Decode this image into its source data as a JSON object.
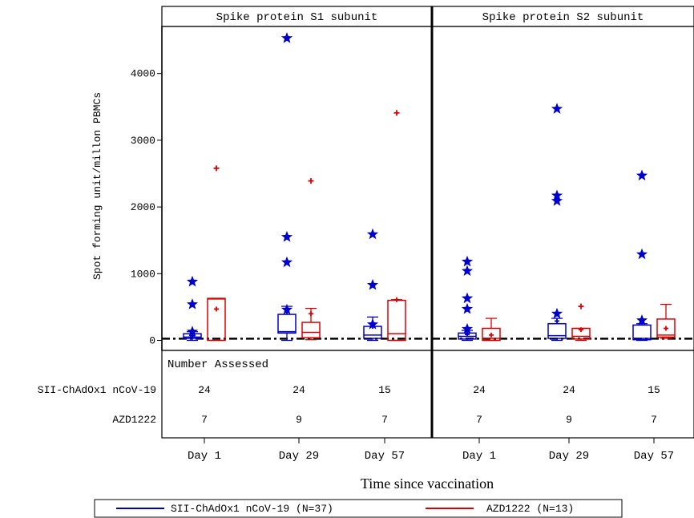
{
  "chart_data": {
    "type": "box",
    "ylabel": "Spot forming unit/millon PBMCs",
    "xlabel": "Time since vaccination",
    "ylim": [
      -150,
      4750
    ],
    "yticks": [
      0,
      1000,
      2000,
      3000,
      4000
    ],
    "categories": [
      "Day 1",
      "Day 29",
      "Day 57"
    ],
    "reference_line": 25,
    "number_assessed_label": "Number Assessed",
    "series": [
      {
        "name": "SII-ChAdOx1 nCoV-19",
        "legend": "SII-ChAdOx1 nCoV-19 (N=37)",
        "color": "#0000cc",
        "marker": "star"
      },
      {
        "name": "AZD1222",
        "legend": "AZD1222 (N=13)",
        "color": "#dd0000",
        "marker": "plus"
      }
    ],
    "panels": [
      {
        "title": "Spike protein S1 subunit",
        "groups": [
          {
            "category": "Day 1",
            "sii": {
              "n": "24",
              "min": 0,
              "q1": 30,
              "median": 50,
              "q3": 100,
              "max": 130,
              "mean": 70,
              "outliers": [
                880,
                540,
                130
              ]
            },
            "azd": {
              "n": "7",
              "min": 0,
              "q1": 0,
              "median": 620,
              "q3": 630,
              "max": 630,
              "mean": 470,
              "outliers": [
                2580
              ]
            }
          },
          {
            "category": "Day 29",
            "sii": {
              "n": "24",
              "min": 0,
              "q1": 110,
              "median": 130,
              "q3": 390,
              "max": 510,
              "mean": 430,
              "outliers": [
                4530,
                1550,
                1170,
                460
              ]
            },
            "azd": {
              "n": "9",
              "min": 10,
              "q1": 40,
              "median": 120,
              "q3": 270,
              "max": 480,
              "mean": 400,
              "outliers": [
                2390
              ]
            }
          },
          {
            "category": "Day 57",
            "sii": {
              "n": "15",
              "min": 0,
              "q1": 30,
              "median": 80,
              "q3": 210,
              "max": 350,
              "mean": 210,
              "outliers": [
                1590,
                830,
                240
              ]
            },
            "azd": {
              "n": "7",
              "min": 0,
              "q1": 0,
              "median": 100,
              "q3": 600,
              "max": 610,
              "mean": 610,
              "outliers": [
                3410
              ]
            }
          }
        ]
      },
      {
        "title": "Spike protein S2 subunit",
        "groups": [
          {
            "category": "Day 1",
            "sii": {
              "n": "24",
              "min": 0,
              "q1": 20,
              "median": 60,
              "q3": 110,
              "max": 150,
              "mean": 90,
              "outliers": [
                1180,
                1040,
                630,
                470,
                170
              ]
            },
            "azd": {
              "n": "7",
              "min": 0,
              "q1": 0,
              "median": 30,
              "q3": 180,
              "max": 330,
              "mean": 80,
              "outliers": []
            }
          },
          {
            "category": "Day 29",
            "sii": {
              "n": "24",
              "min": 0,
              "q1": 30,
              "median": 70,
              "q3": 250,
              "max": 330,
              "mean": 290,
              "outliers": [
                3470,
                2170,
                2090,
                400
              ]
            },
            "azd": {
              "n": "9",
              "min": 0,
              "q1": 20,
              "median": 60,
              "q3": 180,
              "max": 180,
              "mean": 160,
              "outliers": [
                510
              ]
            }
          },
          {
            "category": "Day 57",
            "sii": {
              "n": "15",
              "min": 0,
              "q1": 10,
              "median": 30,
              "q3": 230,
              "max": 250,
              "mean": 280,
              "outliers": [
                2470,
                1290,
                300
              ]
            },
            "azd": {
              "n": "7",
              "min": 30,
              "q1": 50,
              "median": 80,
              "q3": 320,
              "max": 540,
              "mean": 180,
              "outliers": []
            }
          }
        ]
      }
    ]
  }
}
